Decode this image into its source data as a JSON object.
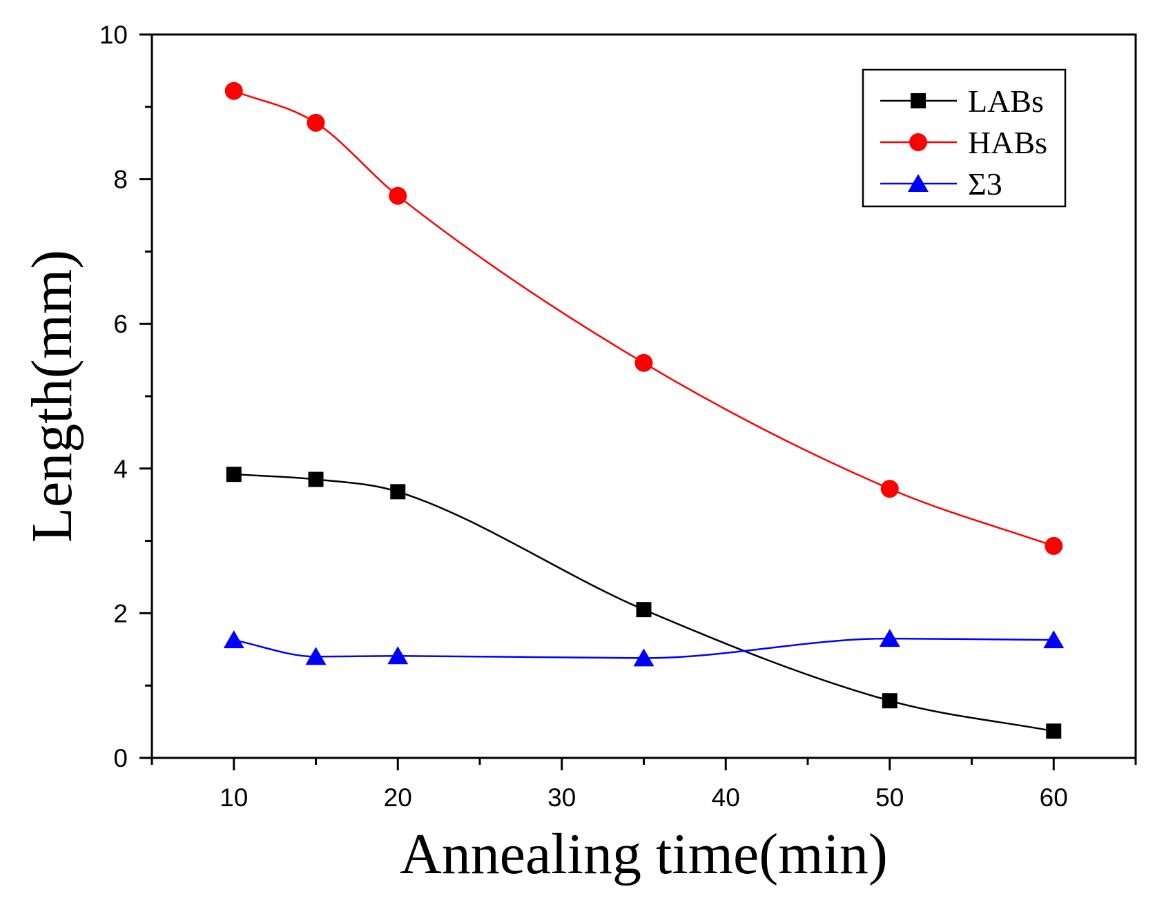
{
  "chart_data": {
    "type": "line",
    "title": "",
    "xlabel": "Annealing time(min)",
    "ylabel": "Length(mm)",
    "xlim": [
      5,
      65
    ],
    "ylim": [
      0,
      10
    ],
    "x_ticks": [
      10,
      20,
      30,
      40,
      50,
      60
    ],
    "y_ticks": [
      0,
      2,
      4,
      6,
      8,
      10
    ],
    "x_minor_step": 5,
    "y_minor_step": 1,
    "grid": false,
    "legend_position": "top-right",
    "x": [
      10,
      15,
      20,
      35,
      50,
      60
    ],
    "series": [
      {
        "name": "LABs",
        "marker": "square",
        "color": "#000000",
        "values": [
          3.92,
          3.85,
          3.68,
          2.05,
          0.79,
          0.37
        ]
      },
      {
        "name": "HABs",
        "marker": "circle",
        "color": "#ff0000",
        "values": [
          9.22,
          8.78,
          7.77,
          5.46,
          3.72,
          2.93
        ]
      },
      {
        "name": "Σ3",
        "marker": "triangle",
        "color": "#0000ff",
        "values": [
          1.63,
          1.4,
          1.41,
          1.38,
          1.65,
          1.63
        ]
      }
    ]
  }
}
